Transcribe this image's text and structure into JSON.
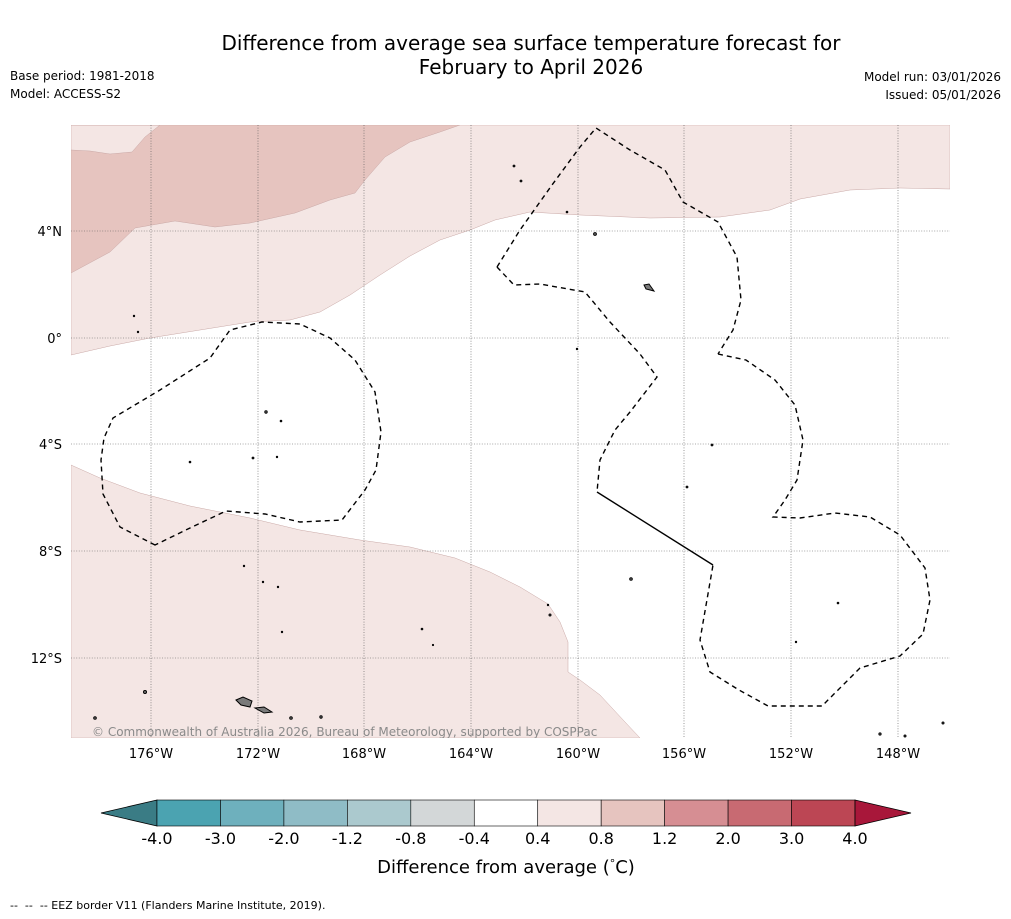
{
  "header": {
    "title_line1": "Difference from average sea surface temperature forecast for",
    "title_line2": "February to April 2026",
    "base_period": "Base period: 1981-2018",
    "model": "Model: ACCESS-S2",
    "model_run": "Model run: 03/01/2026",
    "issued": "Issued: 05/01/2026"
  },
  "map": {
    "longitude_labels": [
      "176°W",
      "172°W",
      "168°W",
      "164°W",
      "160°W",
      "156°W",
      "152°W",
      "148°W"
    ],
    "latitude_labels": [
      "4°N",
      "0°",
      "4°S",
      "8°S",
      "12°S"
    ],
    "copyright": "© Commonwealth of Australia 2026, Bureau of Meteorology, supported by COSPPac",
    "anomaly_colors": {
      "band_0_4_to_0_8": "#f4e6e4",
      "band_0_8_to_1_2": "#e6c4bf"
    }
  },
  "colorbar": {
    "title_prefix": "Difference from average (",
    "title_degree": "°",
    "title_suffix": "C)",
    "ticks": [
      "-4.0",
      "-3.0",
      "-2.0",
      "-1.2",
      "-0.8",
      "-0.4",
      "0.4",
      "0.8",
      "1.2",
      "2.0",
      "3.0",
      "4.0"
    ],
    "colors": [
      "#4ba3b1",
      "#6eb0bd",
      "#8fbcc6",
      "#abc9ce",
      "#d3d7d8",
      "#ffffff",
      "#f4e6e4",
      "#e6c4bf",
      "#d68e93",
      "#c86a72",
      "#bc4654"
    ],
    "under_color": "#3a7c85",
    "over_color": "#a8173a"
  },
  "footer": {
    "eez_legend": "--  --  -- EEZ border V11 (Flanders Marine Institute, 2019)."
  }
}
